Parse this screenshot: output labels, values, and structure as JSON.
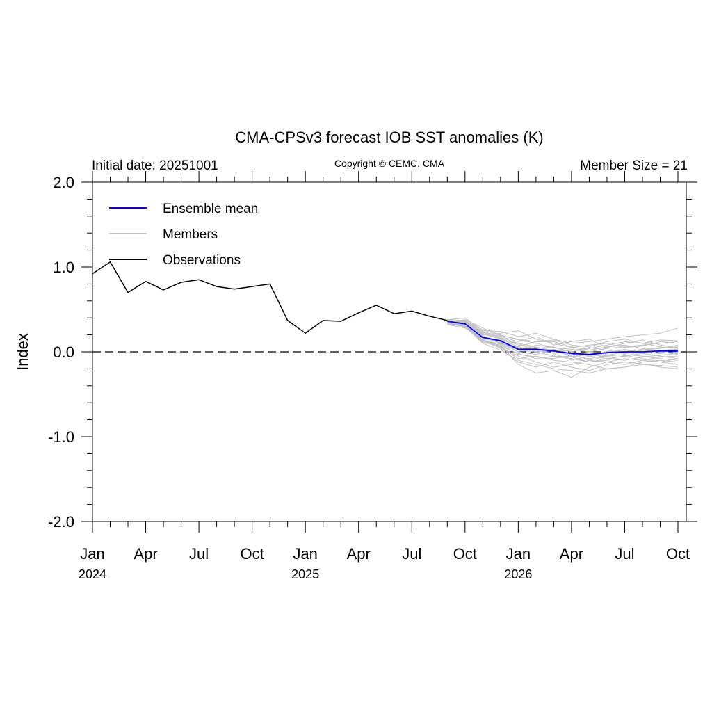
{
  "chart_data": {
    "type": "line",
    "title": "CMA-CPSv3 forecast IOB SST anomalies (K)",
    "subtitle_left": "Initial date: 20251001",
    "subtitle_center": "Copyright © CEMC, CMA",
    "subtitle_right": "Member Size = 21",
    "ylabel": "Index",
    "ylim": [
      -2.0,
      2.0
    ],
    "xlim": [
      0,
      33
    ],
    "y_ticks": [
      {
        "value": 2.0,
        "label": "2.0"
      },
      {
        "value": 1.0,
        "label": "1.0"
      },
      {
        "value": 0.0,
        "label": "0.0"
      },
      {
        "value": -1.0,
        "label": "-1.0"
      },
      {
        "value": -2.0,
        "label": "-2.0"
      }
    ],
    "x_ticks": [
      {
        "value": 0,
        "label": "Jan",
        "year": "2024"
      },
      {
        "value": 3,
        "label": "Apr",
        "year": ""
      },
      {
        "value": 6,
        "label": "Jul",
        "year": ""
      },
      {
        "value": 9,
        "label": "Oct",
        "year": ""
      },
      {
        "value": 12,
        "label": "Jan",
        "year": "2025"
      },
      {
        "value": 15,
        "label": "Apr",
        "year": ""
      },
      {
        "value": 18,
        "label": "Jul",
        "year": ""
      },
      {
        "value": 21,
        "label": "Oct",
        "year": ""
      },
      {
        "value": 24,
        "label": "Jan",
        "year": "2026"
      },
      {
        "value": 27,
        "label": "Apr",
        "year": ""
      },
      {
        "value": 30,
        "label": "Jul",
        "year": ""
      },
      {
        "value": 33,
        "label": "Oct",
        "year": ""
      }
    ],
    "zero_line": "dashed",
    "legend_position": "top-left",
    "legend": [
      {
        "name": "Ensemble mean",
        "color": "#0000ff"
      },
      {
        "name": "Members",
        "color": "#c0c0c0"
      },
      {
        "name": "Observations",
        "color": "#000000"
      }
    ],
    "observations": {
      "name": "Observations",
      "color": "#000000",
      "x": [
        0,
        1,
        2,
        3,
        4,
        5,
        6,
        7,
        8,
        9,
        10,
        11,
        12,
        13,
        14,
        15,
        16,
        17,
        18,
        19,
        20
      ],
      "values": [
        0.92,
        1.06,
        0.7,
        0.83,
        0.73,
        0.82,
        0.85,
        0.77,
        0.74,
        0.77,
        0.8,
        0.37,
        0.22,
        0.37,
        0.36,
        0.46,
        0.55,
        0.45,
        0.48,
        0.42,
        0.37
      ]
    },
    "ensemble_mean": {
      "name": "Ensemble mean",
      "color": "#0000ff",
      "x": [
        20,
        21,
        22,
        23,
        24,
        25,
        26,
        27,
        28,
        29,
        30,
        31,
        32,
        33
      ],
      "values": [
        0.36,
        0.33,
        0.17,
        0.13,
        0.03,
        0.03,
        0.01,
        -0.02,
        -0.03,
        -0.01,
        0.0,
        0.0,
        0.01,
        0.01
      ]
    },
    "members": {
      "name": "Members",
      "color": "#c0c0c0",
      "x": [
        20,
        21,
        22,
        23,
        24,
        25,
        26,
        27,
        28,
        29,
        30,
        31,
        32,
        33
      ],
      "series": [
        [
          0.35,
          0.38,
          0.28,
          0.2,
          0.14,
          0.1,
          0.05,
          0.03,
          0.0,
          0.04,
          0.06,
          0.08,
          0.1,
          0.12
        ],
        [
          0.33,
          0.3,
          0.1,
          0.02,
          -0.1,
          -0.15,
          -0.2,
          -0.22,
          -0.25,
          -0.2,
          -0.18,
          -0.15,
          -0.16,
          -0.18
        ],
        [
          0.38,
          0.4,
          0.25,
          0.24,
          0.18,
          0.22,
          0.15,
          0.1,
          0.12,
          0.15,
          0.18,
          0.2,
          0.22,
          0.28
        ],
        [
          0.34,
          0.31,
          0.15,
          0.05,
          -0.05,
          -0.12,
          -0.18,
          -0.15,
          -0.1,
          -0.05,
          -0.03,
          -0.05,
          -0.08,
          -0.1
        ],
        [
          0.36,
          0.35,
          0.22,
          0.16,
          0.08,
          0.05,
          0.02,
          -0.05,
          -0.08,
          -0.04,
          0.0,
          0.03,
          0.05,
          0.06
        ],
        [
          0.37,
          0.34,
          0.12,
          0.08,
          -0.15,
          -0.25,
          -0.22,
          -0.3,
          -0.18,
          -0.12,
          -0.15,
          -0.1,
          -0.12,
          -0.15
        ],
        [
          0.35,
          0.36,
          0.2,
          0.22,
          0.25,
          0.15,
          0.1,
          0.05,
          0.08,
          0.1,
          0.05,
          0.07,
          0.12,
          0.1
        ],
        [
          0.32,
          0.28,
          0.18,
          0.1,
          0.0,
          0.08,
          0.05,
          0.0,
          -0.05,
          0.0,
          0.02,
          0.0,
          -0.02,
          0.0
        ],
        [
          0.38,
          0.33,
          0.16,
          0.14,
          0.1,
          0.0,
          -0.05,
          -0.08,
          -0.12,
          -0.08,
          -0.05,
          -0.02,
          0.02,
          0.03
        ],
        [
          0.36,
          0.32,
          0.14,
          0.06,
          -0.08,
          -0.05,
          -0.1,
          -0.12,
          -0.15,
          -0.2,
          -0.18,
          -0.12,
          -0.1,
          -0.12
        ],
        [
          0.34,
          0.37,
          0.24,
          0.18,
          0.12,
          0.18,
          0.08,
          0.12,
          0.15,
          0.05,
          0.1,
          0.14,
          0.08,
          0.05
        ],
        [
          0.35,
          0.3,
          0.12,
          0.1,
          0.05,
          0.02,
          -0.02,
          -0.1,
          -0.05,
          -0.08,
          -0.1,
          -0.06,
          -0.04,
          -0.02
        ],
        [
          0.37,
          0.35,
          0.19,
          0.12,
          0.0,
          -0.03,
          0.03,
          -0.02,
          -0.1,
          -0.12,
          -0.08,
          -0.1,
          -0.06,
          -0.05
        ],
        [
          0.33,
          0.34,
          0.21,
          0.15,
          0.06,
          0.12,
          0.12,
          0.06,
          0.02,
          0.06,
          0.08,
          0.04,
          0.0,
          -0.03
        ],
        [
          0.36,
          0.31,
          0.13,
          0.04,
          -0.12,
          -0.18,
          -0.12,
          -0.18,
          -0.22,
          -0.15,
          -0.12,
          -0.14,
          -0.18,
          -0.2
        ],
        [
          0.35,
          0.36,
          0.23,
          0.17,
          0.1,
          0.06,
          0.0,
          0.02,
          0.04,
          0.08,
          0.12,
          0.1,
          0.14,
          0.13
        ],
        [
          0.34,
          0.29,
          0.11,
          0.07,
          -0.02,
          -0.08,
          -0.05,
          -0.06,
          -0.12,
          -0.1,
          -0.04,
          -0.08,
          -0.12,
          -0.08
        ],
        [
          0.36,
          0.33,
          0.17,
          0.13,
          0.05,
          0.04,
          0.06,
          0.0,
          0.05,
          0.02,
          -0.02,
          0.02,
          0.04,
          0.08
        ],
        [
          0.38,
          0.37,
          0.26,
          0.19,
          0.15,
          0.12,
          0.14,
          0.08,
          0.06,
          0.12,
          0.15,
          0.1,
          0.06,
          0.04
        ],
        [
          0.33,
          0.32,
          0.14,
          0.09,
          -0.03,
          -0.06,
          -0.08,
          -0.04,
          0.0,
          -0.02,
          0.03,
          -0.02,
          -0.05,
          -0.08
        ],
        [
          0.35,
          0.31,
          0.16,
          0.11,
          0.02,
          0.0,
          0.03,
          -0.06,
          -0.03,
          -0.06,
          -0.06,
          0.02,
          0.0,
          0.02
        ]
      ]
    }
  }
}
